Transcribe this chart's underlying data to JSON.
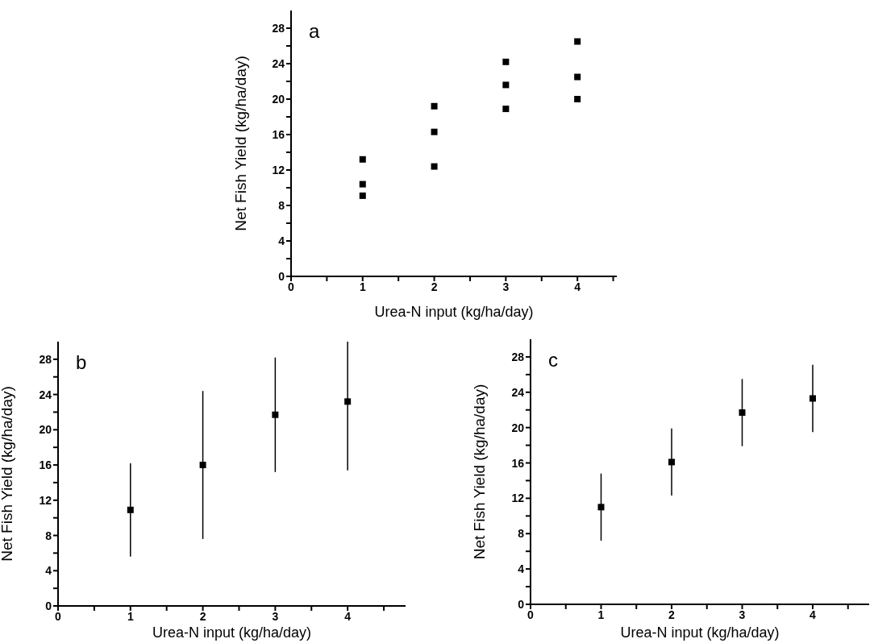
{
  "chart_data": [
    {
      "type": "scatter",
      "xlabel": "Urea-N input (kg/ha/day)",
      "ylabel": "Net Fish Yield (kg/ha/day)",
      "annotations": [
        "a"
      ],
      "marker": "square",
      "grid": false,
      "xlim": [
        0,
        4.55
      ],
      "ylim": [
        0,
        30
      ],
      "xticks": [
        0,
        {
          "value": 0.5,
          "label": null
        },
        1,
        {
          "value": 1.5,
          "label": null
        },
        2,
        {
          "value": 2.5,
          "label": null
        },
        3,
        {
          "value": 3.5,
          "label": null
        },
        4,
        {
          "value": 4.5,
          "label": null
        }
      ],
      "yticks": [
        0,
        {
          "value": 2,
          "label": null
        },
        4,
        {
          "value": 6,
          "label": null
        },
        8,
        {
          "value": 10,
          "label": null
        },
        12,
        {
          "value": 14,
          "label": null
        },
        16,
        {
          "value": 18,
          "label": null
        },
        20,
        {
          "value": 22,
          "label": null
        },
        24,
        {
          "value": 26,
          "label": null
        },
        28
      ],
      "series": [
        {
          "color": "#000000",
          "x": [
            1,
            1,
            1,
            2,
            2,
            2,
            3,
            3,
            3,
            4,
            4,
            4
          ],
          "values": [
            13.2,
            10.4,
            9.1,
            19.2,
            16.3,
            12.4,
            24.2,
            21.6,
            18.9,
            26.5,
            22.5,
            20.0
          ]
        }
      ]
    },
    {
      "type": "scatter",
      "xlabel": "Urea-N input (kg/ha/day)",
      "ylabel": "Net Fish Yield (kg/ha/day)",
      "annotations": [
        "b"
      ],
      "marker": "square",
      "grid": false,
      "xlim": [
        0,
        4.8
      ],
      "ylim": [
        0,
        30
      ],
      "xticks": [
        0,
        {
          "value": 0.5,
          "label": null
        },
        1,
        {
          "value": 1.5,
          "label": null
        },
        2,
        {
          "value": 2.5,
          "label": null
        },
        3,
        {
          "value": 3.5,
          "label": null
        },
        4,
        {
          "value": 4.5,
          "label": null
        }
      ],
      "yticks": [
        0,
        {
          "value": 2,
          "label": null
        },
        4,
        {
          "value": 6,
          "label": null
        },
        8,
        {
          "value": 10,
          "label": null
        },
        12,
        {
          "value": 14,
          "label": null
        },
        16,
        {
          "value": 18,
          "label": null
        },
        20,
        {
          "value": 22,
          "label": null
        },
        24,
        {
          "value": 26,
          "label": null
        },
        28
      ],
      "series": [
        {
          "color": "#000000",
          "x": [
            1,
            2,
            3,
            4
          ],
          "values": [
            10.9,
            16.0,
            21.7,
            23.2
          ],
          "errors": [
            5.3,
            8.4,
            6.5,
            [
              15.4,
              30
            ]
          ]
        }
      ]
    },
    {
      "type": "scatter",
      "xlabel": "Urea-N input (kg/ha/day)",
      "ylabel": "Net Fish Yield (kg/ha/day)",
      "annotations": [
        "c"
      ],
      "marker": "square",
      "grid": false,
      "xlim": [
        0,
        4.8
      ],
      "ylim": [
        0,
        30
      ],
      "xticks": [
        0,
        {
          "value": 0.5,
          "label": null
        },
        1,
        {
          "value": 1.5,
          "label": null
        },
        2,
        {
          "value": 2.5,
          "label": null
        },
        3,
        {
          "value": 3.5,
          "label": null
        },
        4,
        {
          "value": 4.5,
          "label": null
        }
      ],
      "yticks": [
        0,
        {
          "value": 2,
          "label": null
        },
        4,
        {
          "value": 6,
          "label": null
        },
        8,
        {
          "value": 10,
          "label": null
        },
        12,
        {
          "value": 14,
          "label": null
        },
        16,
        {
          "value": 18,
          "label": null
        },
        20,
        {
          "value": 22,
          "label": null
        },
        24,
        {
          "value": 26,
          "label": null
        },
        28
      ],
      "series": [
        {
          "color": "#000000",
          "x": [
            1,
            2,
            3,
            4
          ],
          "values": [
            11.0,
            16.1,
            21.7,
            23.3
          ],
          "errors": [
            3.8,
            3.8,
            3.8,
            3.8
          ]
        }
      ]
    }
  ]
}
